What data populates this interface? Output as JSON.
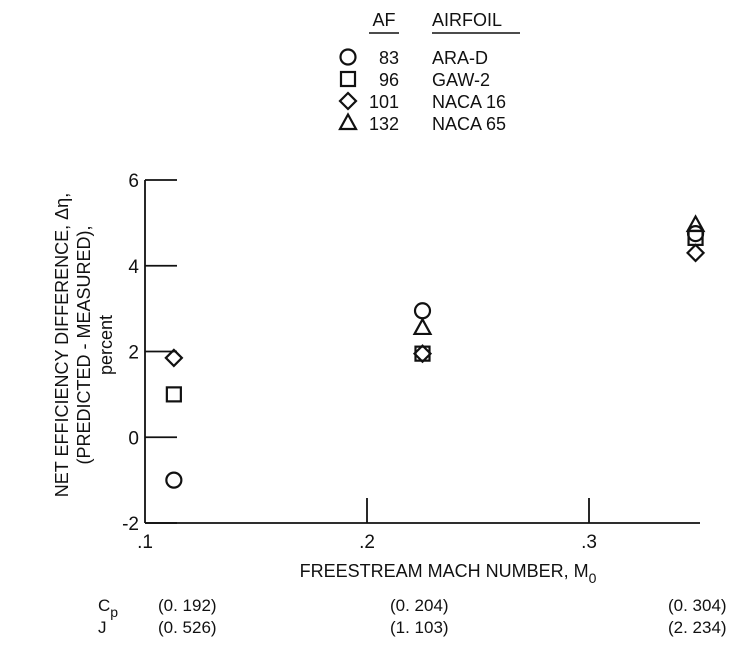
{
  "chart_data": {
    "type": "scatter",
    "title": "",
    "xlabel": "FREESTREAM MACH NUMBER, M",
    "xlabel_sub": "0",
    "ylabel_lines": [
      "NET EFFICIENCY DIFFERENCE, Δη,",
      "(PREDICTED - MEASURED),",
      "percent"
    ],
    "xlim": [
      0.1,
      0.35
    ],
    "ylim": [
      -2,
      6
    ],
    "x_ticks": [
      0.1,
      0.2,
      0.3
    ],
    "x_tick_labels": [
      ".1",
      ".2",
      ".3"
    ],
    "y_ticks": [
      -2,
      0,
      2,
      4,
      6
    ],
    "y_tick_labels": [
      "-2",
      "0",
      "2",
      "4",
      "6"
    ],
    "grid": false,
    "legend_position": "top-center",
    "legend_header": {
      "af": "AF",
      "airfoil": "AIRFOIL"
    },
    "series": [
      {
        "af": "83",
        "name": "ARA-D",
        "marker": "circle",
        "points": [
          {
            "x": 0.113,
            "y": -1.0
          },
          {
            "x": 0.225,
            "y": 2.95
          },
          {
            "x": 0.348,
            "y": 4.75
          }
        ]
      },
      {
        "af": "96",
        "name": "GAW-2",
        "marker": "square",
        "points": [
          {
            "x": 0.113,
            "y": 1.0
          },
          {
            "x": 0.225,
            "y": 1.95
          },
          {
            "x": 0.348,
            "y": 4.65
          }
        ]
      },
      {
        "af": "101",
        "name": "NACA 16",
        "marker": "diamond",
        "points": [
          {
            "x": 0.113,
            "y": 1.85
          },
          {
            "x": 0.225,
            "y": 1.95
          },
          {
            "x": 0.348,
            "y": 4.3
          }
        ]
      },
      {
        "af": "132",
        "name": "NACA 65",
        "marker": "triangle",
        "points": [
          {
            "x": 0.225,
            "y": 2.55
          },
          {
            "x": 0.348,
            "y": 4.95
          }
        ]
      }
    ],
    "condition_rows": [
      {
        "label": "C",
        "label_sub": "p",
        "values": [
          "(0. 192)",
          "(0. 204)",
          "(0. 304)"
        ]
      },
      {
        "label": "J",
        "label_sub": "",
        "values": [
          "(0. 526)",
          "(1. 103)",
          "(2. 234)"
        ]
      }
    ]
  }
}
